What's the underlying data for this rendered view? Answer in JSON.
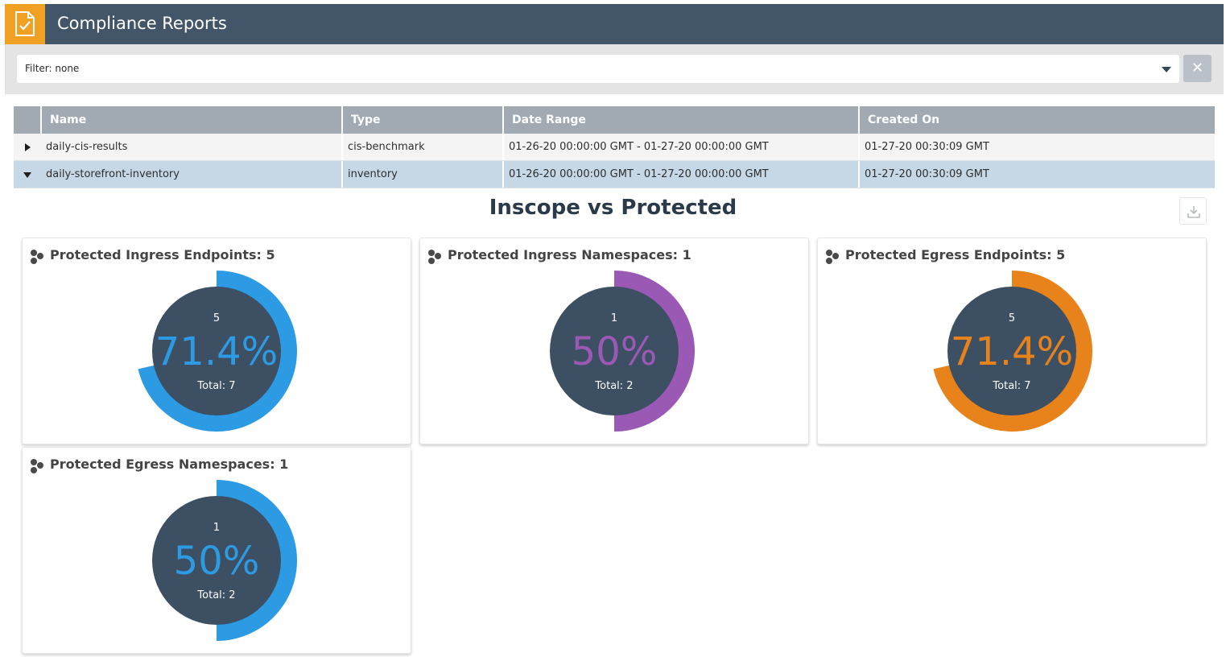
{
  "header": {
    "title": "Compliance Reports",
    "icon": "report-check-icon"
  },
  "filter": {
    "label": "Filter: none",
    "clear_icon": "close-icon",
    "clear_label": "✕"
  },
  "table": {
    "columns": [
      "Name",
      "Type",
      "Date Range",
      "Created On"
    ],
    "rows": [
      {
        "name": "daily-cis-results",
        "type": "cis-benchmark",
        "date_range": "01-26-20 00:00:00 GMT - 01-27-20 00:00:00 GMT",
        "created_on": "01-27-20 00:30:09 GMT",
        "expanded": false
      },
      {
        "name": "daily-storefront-inventory",
        "type": "inventory",
        "date_range": "01-26-20 00:00:00 GMT - 01-27-20 00:00:00 GMT",
        "created_on": "01-27-20 00:30:09 GMT",
        "expanded": true
      }
    ]
  },
  "section": {
    "title": "Inscope vs Protected",
    "download_icon": "download-icon"
  },
  "cards": [
    {
      "title": "Protected Ingress Endpoints: 5",
      "count": "5",
      "percent": "71.4%",
      "total": "Total: 7",
      "fraction": 0.714,
      "color": "#2d9be4"
    },
    {
      "title": "Protected Ingress Namespaces: 1",
      "count": "1",
      "percent": "50%",
      "total": "Total: 2",
      "fraction": 0.5,
      "color": "#9b59b6"
    },
    {
      "title": "Protected Egress Endpoints: 5",
      "count": "5",
      "percent": "71.4%",
      "total": "Total: 7",
      "fraction": 0.714,
      "color": "#e8821a"
    },
    {
      "title": "Protected Egress Namespaces: 1",
      "count": "1",
      "percent": "50%",
      "total": "Total: 2",
      "fraction": 0.5,
      "color": "#2d9be4"
    }
  ],
  "colors": {
    "header_bg": "#435568",
    "accent": "#f0a022",
    "donut_center": "#3d4f63"
  }
}
